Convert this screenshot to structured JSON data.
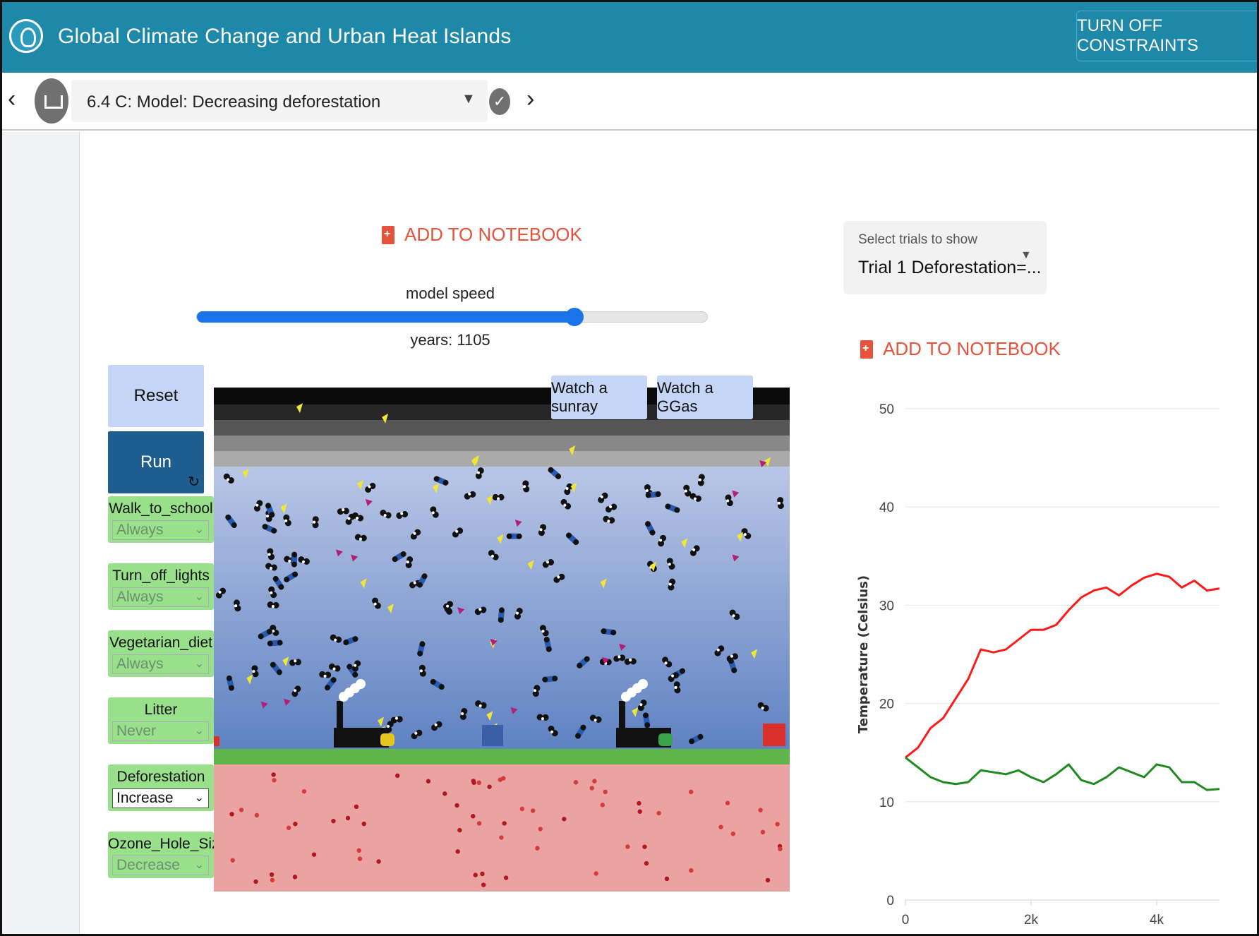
{
  "header": {
    "title": "Global Climate Change and Urban Heat Islands",
    "turn_off_constraints": "TURN OFF CONSTRAINTS"
  },
  "step_nav": {
    "prev": "‹",
    "next": "›",
    "current_step": "6.4 C: Model: Decreasing deforestation",
    "check": "✓"
  },
  "model_panel": {
    "add_to_notebook": "ADD TO NOTEBOOK",
    "speed_label": "model speed",
    "speed_value": 0.74,
    "years_text": "years: 1105",
    "reset": "Reset",
    "run": "Run",
    "run_icon": "refresh-icon",
    "sim_buttons": {
      "sunray": "Watch a sunray",
      "ggas": "Watch a GGas"
    },
    "controls": [
      {
        "name": "Walk_to_school",
        "value": "Always",
        "enabled": false
      },
      {
        "name": "Turn_off_lights",
        "value": "Always",
        "enabled": false
      },
      {
        "name": "Vegetarian_diet",
        "value": "Always",
        "enabled": false
      },
      {
        "name": "Litter",
        "value": "Never",
        "enabled": false
      },
      {
        "name": "Deforestation",
        "value": "Increase",
        "enabled": true
      },
      {
        "name": "Ozone_Hole_Size",
        "value": "Decrease",
        "enabled": false
      }
    ]
  },
  "graph_panel": {
    "trials_label": "Select trials to show",
    "trials_value": "Trial 1 Deforestation=...",
    "add_to_notebook": "ADD TO NOTEBOOK"
  },
  "colors": {
    "header": "#1e88a8",
    "accent_red": "#e5533c",
    "slider": "#1a73e8",
    "control_green": "#98e08a",
    "trial_red": "#ff1a1a",
    "trial_green": "#1f8a1f"
  },
  "chart_data": {
    "type": "line",
    "title": "",
    "xlabel": "",
    "ylabel": "Temperature (Celsius)",
    "xlim": [
      0,
      5000
    ],
    "ylim": [
      0,
      50
    ],
    "x_ticks": [
      {
        "value": 0,
        "label": "0"
      },
      {
        "value": 2000,
        "label": "2k"
      },
      {
        "value": 4000,
        "label": "4k"
      }
    ],
    "y_ticks": [
      0,
      10,
      20,
      30,
      40,
      50
    ],
    "series": [
      {
        "color": "#ff1a1a",
        "x": [
          0,
          200,
          400,
          600,
          800,
          1000,
          1200,
          1400,
          1600,
          1800,
          2000,
          2200,
          2400,
          2600,
          2800,
          3000,
          3200,
          3400,
          3600,
          3800,
          4000,
          4200,
          4400,
          4600,
          4800,
          5000
        ],
        "y": [
          14.5,
          15.5,
          17.5,
          18.5,
          20.5,
          22.5,
          25.5,
          25.2,
          25.5,
          26.5,
          27.5,
          27.5,
          28.0,
          29.5,
          30.8,
          31.5,
          31.8,
          31.0,
          32.0,
          32.8,
          33.2,
          32.9,
          31.8,
          32.5,
          31.5,
          31.7
        ]
      },
      {
        "color": "#1f8a1f",
        "x": [
          0,
          200,
          400,
          600,
          800,
          1000,
          1200,
          1400,
          1600,
          1800,
          2000,
          2200,
          2400,
          2600,
          2800,
          3000,
          3200,
          3400,
          3600,
          3800,
          4000,
          4200,
          4400,
          4600,
          4800,
          5000
        ],
        "y": [
          14.5,
          13.5,
          12.5,
          12.0,
          11.8,
          12.0,
          13.2,
          13.0,
          12.8,
          13.2,
          12.5,
          12.0,
          12.8,
          13.8,
          12.2,
          11.8,
          12.5,
          13.5,
          13.0,
          12.5,
          13.8,
          13.5,
          12.0,
          12.0,
          11.2,
          11.3
        ]
      }
    ],
    "grid": true,
    "legend": "none"
  }
}
